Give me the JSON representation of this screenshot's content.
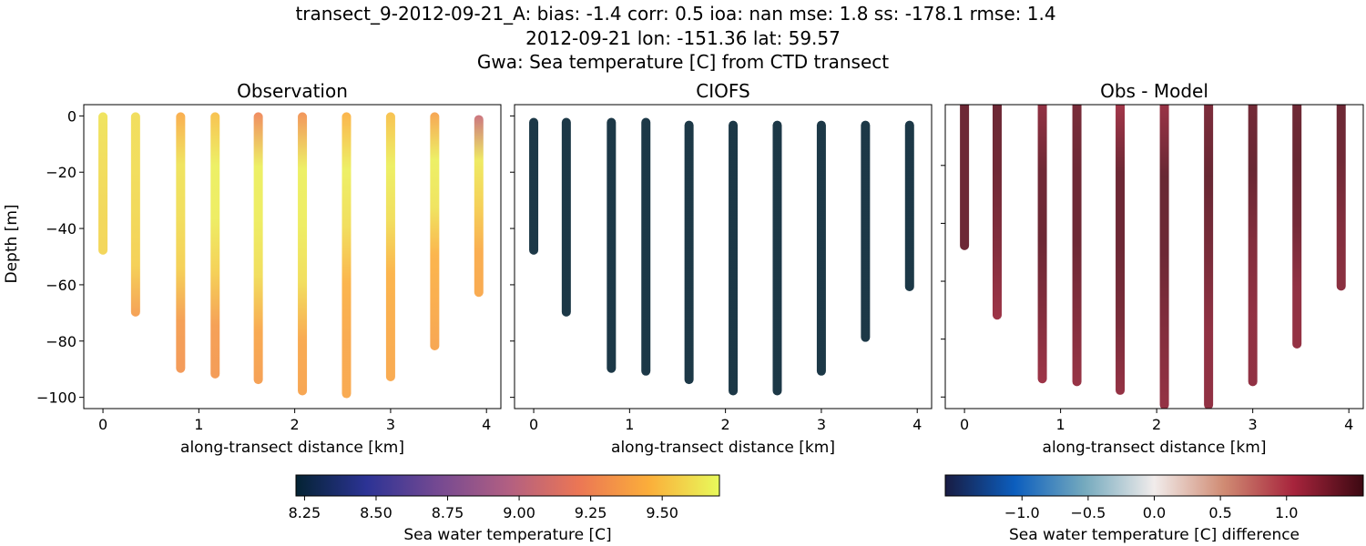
{
  "chart_data": {
    "title_lines": [
      "transect_9-2012-09-21_A: bias: -1.4  corr: 0.5  ioa: nan  mse: 1.8  ss: -178.1  rmse: 1.4",
      "2012-09-21 lon: -151.36 lat: 59.57",
      "Gwa: Sea temperature [C] from CTD transect"
    ],
    "ylabel": "Depth [m]",
    "xlabel": "along-transect distance [km]",
    "x_ticks": [
      0,
      1,
      2,
      3,
      4
    ],
    "panels": [
      {
        "title": "Observation",
        "type": "scatter",
        "xlim": [
          -0.2,
          4.15
        ],
        "ylim": [
          -104,
          4
        ],
        "y_ticks": [
          0,
          -20,
          -40,
          -60,
          -80,
          -100
        ],
        "show_ytick_labels": true,
        "colorbar": 0,
        "profiles": [
          {
            "x": 0.0,
            "top": 0,
            "bottom": -48,
            "values": [
              9.62,
              9.6,
              9.58,
              9.57
            ]
          },
          {
            "x": 0.34,
            "top": 0,
            "bottom": -70,
            "values": [
              9.6,
              9.6,
              9.58,
              9.55,
              9.35
            ]
          },
          {
            "x": 0.81,
            "top": 0,
            "bottom": -90,
            "values": [
              9.42,
              9.62,
              9.6,
              9.55,
              9.35,
              9.32
            ]
          },
          {
            "x": 1.17,
            "top": 0,
            "bottom": -92,
            "values": [
              9.5,
              9.66,
              9.65,
              9.55,
              9.35,
              9.33
            ]
          },
          {
            "x": 1.62,
            "top": 0,
            "bottom": -94,
            "values": [
              9.25,
              9.66,
              9.65,
              9.6,
              9.4,
              9.35
            ]
          },
          {
            "x": 2.08,
            "top": 0,
            "bottom": -98,
            "values": [
              9.3,
              9.66,
              9.65,
              9.6,
              9.4,
              9.38
            ]
          },
          {
            "x": 2.54,
            "top": 0,
            "bottom": -99,
            "values": [
              9.45,
              9.66,
              9.6,
              9.45,
              9.4,
              9.4
            ]
          },
          {
            "x": 3.0,
            "top": 0,
            "bottom": -93,
            "values": [
              9.5,
              9.66,
              9.6,
              9.45,
              9.42,
              9.4
            ]
          },
          {
            "x": 3.46,
            "top": 0,
            "bottom": -82,
            "values": [
              9.38,
              9.66,
              9.62,
              9.45,
              9.42,
              9.38
            ]
          },
          {
            "x": 3.92,
            "top": -1,
            "bottom": -63,
            "values": [
              9.05,
              9.64,
              9.55,
              9.42,
              9.4
            ]
          }
        ]
      },
      {
        "title": "CIOFS",
        "type": "scatter",
        "xlim": [
          -0.2,
          4.15
        ],
        "ylim": [
          -104,
          4
        ],
        "y_ticks": [
          0,
          -20,
          -40,
          -60,
          -80,
          -100
        ],
        "show_ytick_labels": false,
        "colorbar": 0,
        "profiles": [
          {
            "x": 0.0,
            "top": -2,
            "bottom": -48,
            "values": [
              8.22,
              8.22
            ]
          },
          {
            "x": 0.34,
            "top": -2,
            "bottom": -70,
            "values": [
              8.22,
              8.22
            ]
          },
          {
            "x": 0.81,
            "top": -2,
            "bottom": -90,
            "values": [
              8.22,
              8.22
            ]
          },
          {
            "x": 1.17,
            "top": -2,
            "bottom": -91,
            "values": [
              8.22,
              8.22
            ]
          },
          {
            "x": 1.62,
            "top": -3,
            "bottom": -94,
            "values": [
              8.22,
              8.22
            ]
          },
          {
            "x": 2.08,
            "top": -3,
            "bottom": -98,
            "values": [
              8.22,
              8.22
            ]
          },
          {
            "x": 2.54,
            "top": -3,
            "bottom": -98,
            "values": [
              8.22,
              8.22
            ]
          },
          {
            "x": 3.0,
            "top": -3,
            "bottom": -91,
            "values": [
              8.22,
              8.22
            ]
          },
          {
            "x": 3.46,
            "top": -3,
            "bottom": -79,
            "values": [
              8.22,
              8.22
            ]
          },
          {
            "x": 3.92,
            "top": -3,
            "bottom": -61,
            "values": [
              8.22,
              8.22
            ]
          }
        ]
      },
      {
        "title": "Obs - Model",
        "type": "scatter",
        "xlim": [
          -0.2,
          4.15
        ],
        "ylim": [
          -104,
          1
        ],
        "y_ticks": [
          -20,
          -40,
          -60,
          -80,
          -100
        ],
        "show_ytick_labels": false,
        "colorbar": 1,
        "profiles": [
          {
            "x": 0.0,
            "top": 2,
            "bottom": -48,
            "values": [
              1.42,
              1.42,
              1.42
            ]
          },
          {
            "x": 0.34,
            "top": 2,
            "bottom": -72,
            "values": [
              1.42,
              1.4,
              1.3,
              1.15
            ]
          },
          {
            "x": 0.81,
            "top": 2,
            "bottom": -94,
            "values": [
              1.2,
              1.4,
              1.42,
              1.3,
              1.15
            ]
          },
          {
            "x": 1.17,
            "top": 2,
            "bottom": -95,
            "values": [
              1.35,
              1.42,
              1.42,
              1.3,
              1.18
            ]
          },
          {
            "x": 1.62,
            "top": 2,
            "bottom": -98,
            "values": [
              1.1,
              1.42,
              1.42,
              1.35,
              1.2
            ]
          },
          {
            "x": 2.08,
            "top": 2,
            "bottom": -103,
            "values": [
              1.15,
              1.44,
              1.42,
              1.3,
              1.2
            ]
          },
          {
            "x": 2.54,
            "top": 2,
            "bottom": -103,
            "values": [
              1.32,
              1.44,
              1.35,
              1.22,
              1.22
            ]
          },
          {
            "x": 3.0,
            "top": 2,
            "bottom": -95,
            "values": [
              1.38,
              1.44,
              1.3,
              1.22,
              1.22
            ]
          },
          {
            "x": 3.46,
            "top": 2,
            "bottom": -82,
            "values": [
              1.4,
              1.44,
              1.38,
              1.22,
              1.2
            ]
          },
          {
            "x": 3.92,
            "top": 2,
            "bottom": -62,
            "values": [
              1.42,
              1.4,
              1.3,
              1.25
            ]
          }
        ]
      }
    ],
    "colorbars": [
      {
        "label": "Sea water temperature [C]",
        "vmin": 8.22,
        "vmax": 9.7,
        "ticks": [
          "8.25",
          "8.50",
          "8.75",
          "9.00",
          "9.25",
          "9.50"
        ],
        "colormap": [
          "#042333",
          "#2c3395",
          "#744992",
          "#b15f82",
          "#eb7655",
          "#fbae3a",
          "#e8fa5b"
        ]
      },
      {
        "label": "Sea water temperature [C] difference",
        "vmin": -1.58,
        "vmax": 1.58,
        "ticks": [
          "−1.0",
          "−0.5",
          "0.0",
          "0.5",
          "1.0"
        ],
        "tick_values": [
          -1.0,
          -0.5,
          0.0,
          0.5,
          1.0
        ],
        "colormap": [
          "#181c43",
          "#0c5ebe",
          "#75aabe",
          "#f1eceb",
          "#d08b73",
          "#a7243c",
          "#3c0912"
        ]
      }
    ]
  }
}
